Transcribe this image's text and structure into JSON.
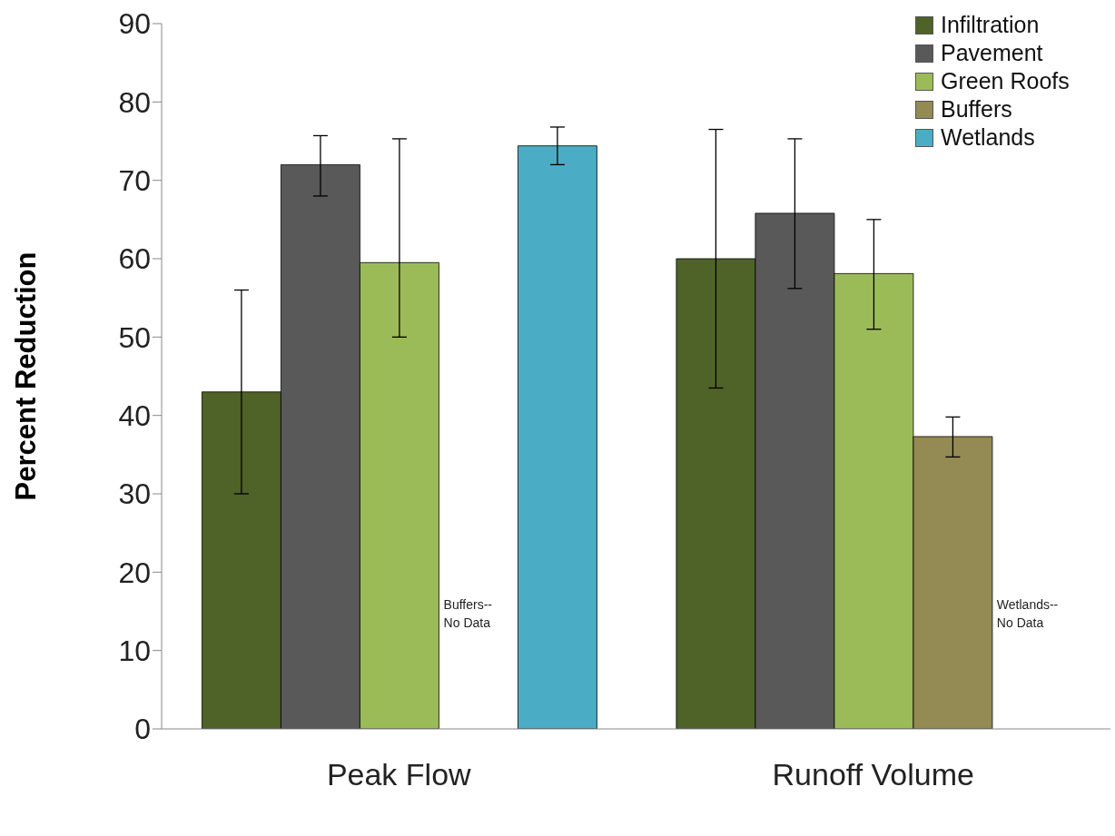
{
  "chart_data": {
    "type": "bar",
    "ylabel": "Percent Reduction",
    "categories": [
      "Peak Flow",
      "Runoff Volume"
    ],
    "series": [
      {
        "name": "Infiltration",
        "color": "#4f6228",
        "values": [
          43,
          60
        ],
        "errors": [
          [
            30,
            56
          ],
          [
            43.5,
            76.5
          ]
        ]
      },
      {
        "name": "Pavement",
        "color": "#595959",
        "values": [
          72,
          65.8
        ],
        "errors": [
          [
            68,
            75.7
          ],
          [
            56.2,
            75.3
          ]
        ]
      },
      {
        "name": "Green Roofs",
        "color": "#9bbb59",
        "values": [
          59.5,
          58.1
        ],
        "errors": [
          [
            50,
            75.3
          ],
          [
            51,
            65
          ]
        ]
      },
      {
        "name": "Buffers",
        "color": "#948a54",
        "values": [
          null,
          37.3
        ],
        "errors": [
          null,
          [
            34.7,
            39.8
          ]
        ]
      },
      {
        "name": "Wetlands",
        "color": "#4bacc6",
        "values": [
          74.4,
          null
        ],
        "errors": [
          [
            72,
            76.8
          ],
          null
        ]
      }
    ],
    "annotations": [
      "Buffers--\nNo Data",
      "Wetlands--\nNo Data"
    ],
    "ylim": [
      0,
      90
    ],
    "yticks": [
      0,
      10,
      20,
      30,
      40,
      50,
      60,
      70,
      80,
      90
    ],
    "grid": false,
    "legend": "top right"
  }
}
